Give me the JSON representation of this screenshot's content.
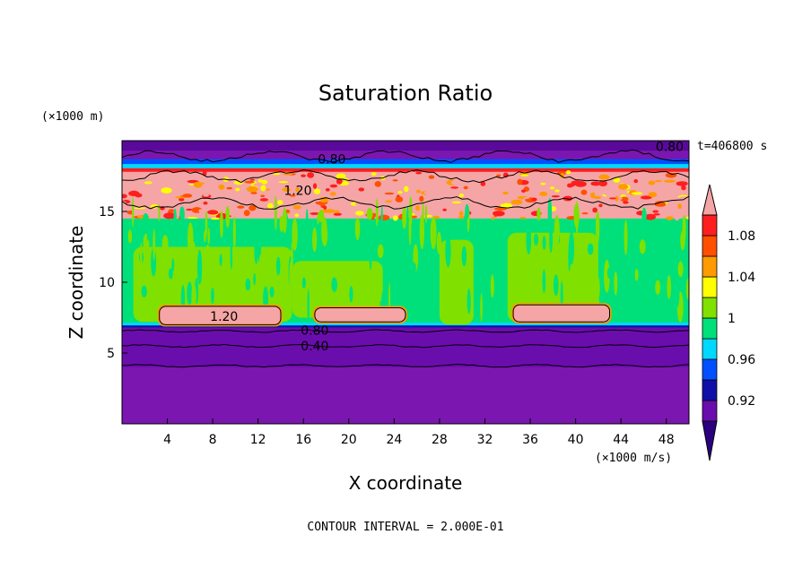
{
  "chart_data": {
    "type": "heatmap",
    "title": "Saturation Ratio",
    "xlabel": "X coordinate",
    "ylabel": "Z coordinate",
    "x_unit": "(×1000 m/s)",
    "y_unit": "(×1000 m)",
    "xlim": [
      0,
      50
    ],
    "ylim": [
      0,
      20
    ],
    "x_ticks": [
      4,
      8,
      12,
      16,
      20,
      24,
      28,
      32,
      36,
      40,
      44,
      48
    ],
    "y_ticks": [
      5,
      10,
      15
    ],
    "time_label": "t=406800 s",
    "footer": "CONTOUR INTERVAL = 2.000E-01",
    "colorbar": {
      "colors": [
        "#2b0080",
        "#6a0dad",
        "#1010a8",
        "#0050ff",
        "#00d8ff",
        "#00e07a",
        "#80e000",
        "#ffff00",
        "#ff9a00",
        "#ff5000",
        "#ff1e1e",
        "#f5a5a5"
      ],
      "labels": [
        "0.92",
        "0.96",
        "1",
        "1.04",
        "1.08"
      ]
    },
    "regions": [
      {
        "name": "lower-dry",
        "z_top": 6.8,
        "value": 0.4,
        "color": "#7b16b0"
      },
      {
        "name": "main-cloud",
        "z_bottom": 6.8,
        "z_top": 16.0,
        "value": 0.99,
        "color": "#00e07a"
      },
      {
        "name": "supersat-layer",
        "z_bottom": 14.5,
        "z_top": 18.2,
        "value": 1.2,
        "color": "#f5a5a5"
      },
      {
        "name": "upper-dry",
        "z_bottom": 18.2,
        "z_top": 20.0,
        "value": 0.8,
        "color": "#7b16b0"
      }
    ],
    "green_patches": [
      {
        "x": [
          1,
          15
        ],
        "z": [
          7.2,
          12.5
        ]
      },
      {
        "x": [
          15,
          23
        ],
        "z": [
          7.5,
          11.5
        ]
      },
      {
        "x": [
          28,
          31
        ],
        "z": [
          7.0,
          13.0
        ]
      },
      {
        "x": [
          34,
          42
        ],
        "z": [
          7.2,
          13.5
        ]
      }
    ],
    "pink_blobs": [
      {
        "x": [
          3.3,
          14.0
        ],
        "z": [
          7.0,
          8.3
        ],
        "label": "1.20"
      },
      {
        "x": [
          17.0,
          25.0
        ],
        "z": [
          7.2,
          8.2
        ]
      },
      {
        "x": [
          34.5,
          43.0
        ],
        "z": [
          7.2,
          8.4
        ]
      }
    ],
    "contour_lines": [
      {
        "value": "0.80",
        "z": 6.55
      },
      {
        "value": "0.40",
        "z": 5.5
      },
      {
        "value": "",
        "z": 4.1
      }
    ],
    "contour_labels": [
      {
        "text": "0.80",
        "x": 17.0,
        "z": 6.6
      },
      {
        "text": "0.40",
        "x": 17.0,
        "z": 5.5
      },
      {
        "text": "1.20",
        "x": 9.0,
        "z": 7.6
      },
      {
        "text": "1.20",
        "x": 15.5,
        "z": 16.5
      },
      {
        "text": "0.80",
        "x": 18.5,
        "z": 18.7
      },
      {
        "text": "0.80",
        "x": 48.3,
        "z": 19.6
      }
    ]
  }
}
